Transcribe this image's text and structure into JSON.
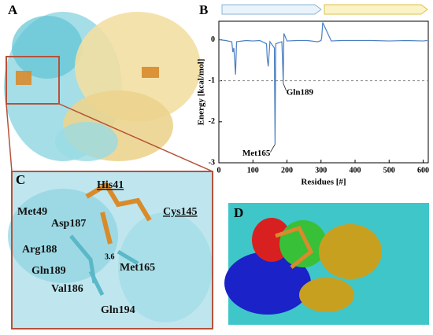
{
  "panels": {
    "a": "A",
    "b": "B",
    "c": "C",
    "d": "D"
  },
  "panel_c": {
    "labels": [
      "His41",
      "Cys145",
      "Met49",
      "Asp187",
      "Arg188",
      "Gln189",
      "Met165",
      "Val186",
      "Gln194",
      "3.6"
    ]
  },
  "chart_data": {
    "type": "line",
    "x_label": "Residues [#]",
    "y_label": "Energy [kcal/mol]",
    "x": [
      1,
      20,
      38,
      41,
      44,
      49,
      52,
      80,
      100,
      120,
      140,
      142,
      145,
      150,
      163,
      165,
      167,
      185,
      187,
      189,
      191,
      200,
      230,
      260,
      290,
      300,
      302,
      305,
      330,
      360,
      400,
      450,
      500,
      550,
      600,
      612
    ],
    "series": [
      {
        "name": "Energy",
        "color": "#4a7fc0",
        "values": [
          0,
          -0.02,
          -0.05,
          -0.3,
          -0.2,
          -0.85,
          -0.05,
          -0.02,
          -0.03,
          -0.02,
          -0.1,
          -0.45,
          -0.65,
          -0.05,
          -0.2,
          -2.55,
          -0.1,
          -0.05,
          -0.5,
          -1.06,
          0.15,
          -0.03,
          -0.02,
          -0.02,
          -0.05,
          -0.02,
          0.05,
          0.42,
          -0.03,
          -0.02,
          -0.02,
          -0.02,
          -0.03,
          -0.02,
          -0.03,
          -0.02
        ]
      }
    ],
    "xlim": [
      0,
      615
    ],
    "ylim": [
      -3,
      0.45
    ],
    "xticks": [
      0,
      100,
      200,
      300,
      400,
      500,
      600
    ],
    "yticks": [
      0,
      -1,
      -2,
      -3
    ],
    "reference_line": -1,
    "annotations": [
      {
        "text": "Gln189",
        "x": 189,
        "y": -1.06
      },
      {
        "text": "Met165",
        "x": 165,
        "y": -2.55
      }
    ]
  }
}
